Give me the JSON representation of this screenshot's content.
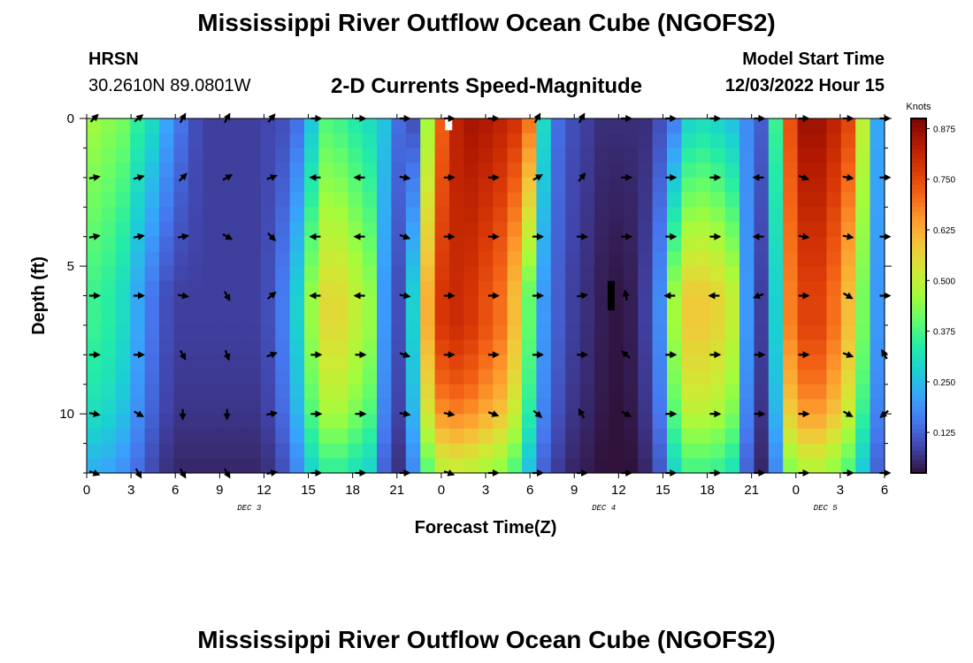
{
  "header": {
    "title": "Mississippi River Outflow Ocean Cube (NGOFS2)",
    "station_name": "HRSN",
    "station_coords": "30.2610N  89.0801W",
    "plot_title": "2-D Currents Speed-Magnitude",
    "model_start_label": "Model Start Time",
    "model_start_value": "12/03/2022 Hour 15"
  },
  "footer": {
    "title": "Mississippi River Outflow Ocean Cube (NGOFS2)"
  },
  "colors": {
    "colormap": [
      "#30123b",
      "#4145ab",
      "#4675ed",
      "#39a2fc",
      "#1bcfd4",
      "#24eca6",
      "#61fc6c",
      "#a4fc3b",
      "#d1e834",
      "#f3c63a",
      "#fe9b2d",
      "#f36315",
      "#d93806",
      "#b11901",
      "#7a0403"
    ],
    "missing": "#000000",
    "arrow": "#000000"
  },
  "chart_data": {
    "type": "heatmap",
    "title": "2-D Currents Speed-Magnitude",
    "xlabel": "Forecast Time(Z)",
    "ylabel": "Depth (ft)",
    "x_tick_labels": [
      "0",
      "3",
      "6",
      "9",
      "12",
      "15",
      "18",
      "21",
      "0",
      "3",
      "6",
      "9",
      "12",
      "15",
      "18",
      "21",
      "0",
      "3",
      "6"
    ],
    "x_hours_range": [
      0,
      54
    ],
    "day_labels": [
      {
        "text": "DEC 3",
        "hour": 11
      },
      {
        "text": "DEC 4",
        "hour": 35
      },
      {
        "text": "DEC 5",
        "hour": 50
      }
    ],
    "y_tick_labels": [
      "0",
      "5",
      "10"
    ],
    "ylim": [
      0,
      12
    ],
    "y_inverted": true,
    "colorbar": {
      "label": "Knots",
      "range": [
        0.025,
        0.9
      ],
      "tick_values": [
        0.125,
        0.25,
        0.375,
        0.5,
        0.625,
        0.75,
        0.875
      ],
      "tick_labels": [
        "0.125",
        "0.250",
        "0.375",
        "0.500",
        "0.625",
        "0.750",
        "0.875"
      ]
    },
    "surface_speed_by_hour": [
      0.46,
      0.44,
      0.42,
      0.35,
      0.3,
      0.22,
      0.15,
      0.1,
      0.08,
      0.08,
      0.08,
      0.08,
      0.09,
      0.1,
      0.14,
      0.26,
      0.38,
      0.36,
      0.33,
      0.3,
      0.26,
      0.14,
      0.1,
      0.46,
      0.72,
      0.82,
      0.85,
      0.84,
      0.82,
      0.79,
      0.7,
      0.3,
      0.14,
      0.1,
      0.08,
      0.06,
      0.06,
      0.06,
      0.06,
      0.1,
      0.16,
      0.28,
      0.3,
      0.28,
      0.25,
      0.18,
      0.12,
      0.36,
      0.74,
      0.86,
      0.86,
      0.82,
      0.76,
      0.5,
      0.22
    ],
    "mid_speed_by_hour": [
      0.36,
      0.34,
      0.3,
      0.22,
      0.15,
      0.1,
      0.08,
      0.08,
      0.08,
      0.08,
      0.08,
      0.08,
      0.1,
      0.16,
      0.28,
      0.45,
      0.55,
      0.55,
      0.5,
      0.45,
      0.2,
      0.1,
      0.28,
      0.62,
      0.78,
      0.8,
      0.78,
      0.74,
      0.7,
      0.6,
      0.4,
      0.2,
      0.12,
      0.08,
      0.06,
      0.04,
      0.03,
      0.04,
      0.08,
      0.18,
      0.46,
      0.58,
      0.58,
      0.56,
      0.5,
      0.2,
      0.08,
      0.28,
      0.68,
      0.76,
      0.76,
      0.7,
      0.6,
      0.42,
      0.2
    ],
    "depth_profile_ft": [
      0,
      1,
      2,
      3,
      4,
      5,
      6,
      7,
      8,
      9,
      10,
      11,
      12
    ],
    "depth_factor": [
      1.0,
      0.99,
      0.97,
      0.95,
      0.92,
      0.9,
      0.9,
      0.9,
      0.86,
      0.82,
      0.76,
      0.66,
      0.56
    ],
    "arrow_grid": {
      "hours": [
        0.5,
        3.5,
        6.5,
        9.5,
        12.5,
        15.5,
        18.5,
        21.5,
        24.5,
        27.5,
        30.5,
        33.5,
        36.5,
        39.5,
        42.5,
        45.5,
        48.5,
        51.5,
        54
      ],
      "depths": [
        0,
        2,
        4,
        6,
        8,
        10,
        12
      ],
      "angles_deg": [
        [
          45,
          40,
          60,
          60,
          50,
          0,
          0,
          0,
          0,
          0,
          60,
          60,
          0,
          0,
          0,
          0,
          0,
          0,
          0
        ],
        [
          10,
          15,
          45,
          30,
          20,
          180,
          180,
          350,
          0,
          0,
          30,
          50,
          0,
          0,
          0,
          180,
          340,
          350,
          0
        ],
        [
          10,
          10,
          10,
          330,
          315,
          180,
          180,
          340,
          0,
          0,
          0,
          0,
          0,
          0,
          0,
          180,
          350,
          350,
          0
        ],
        [
          0,
          0,
          350,
          300,
          40,
          180,
          180,
          350,
          0,
          0,
          0,
          10,
          100,
          180,
          180,
          200,
          0,
          330,
          0
        ],
        [
          0,
          0,
          300,
          290,
          20,
          0,
          0,
          340,
          0,
          0,
          0,
          0,
          140,
          0,
          0,
          0,
          0,
          340,
          120
        ],
        [
          350,
          330,
          270,
          270,
          10,
          0,
          0,
          350,
          350,
          340,
          320,
          120,
          330,
          0,
          0,
          0,
          0,
          330,
          220
        ],
        [
          340,
          300,
          300,
          300,
          10,
          0,
          0,
          0,
          340,
          0,
          0,
          0,
          0,
          0,
          0,
          0,
          0,
          0,
          0
        ]
      ]
    },
    "missing_cells": [
      {
        "hour": 24.5,
        "depth_range": [
          0,
          0.4
        ],
        "color": "#ffffff"
      },
      {
        "hour": 35.5,
        "depth_range": [
          5.5,
          6.5
        ],
        "color": "#000000"
      }
    ]
  }
}
